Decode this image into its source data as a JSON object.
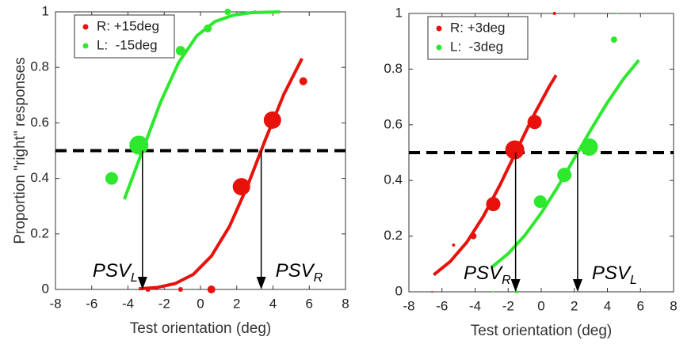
{
  "chart_data": [
    {
      "type": "scatter",
      "ylabel": "Proportion \"right\" responses",
      "xlabel": "Test orientation (deg)",
      "xlim": [
        -8,
        8
      ],
      "ylim": [
        0,
        1
      ],
      "xticks": [
        -8,
        -6,
        -4,
        -2,
        0,
        2,
        4,
        6,
        8
      ],
      "yticks": [
        0,
        0.2,
        0.4,
        0.6,
        0.8,
        1
      ],
      "legend": "upper left",
      "threshold": 0.5,
      "series": [
        {
          "name": "R: +15deg",
          "color": "#e8120c",
          "x": [
            -2.9,
            -1.1,
            0.6,
            2.26,
            3.97,
            5.67
          ],
          "values": [
            0,
            0,
            0,
            0.37,
            0.61,
            0.75
          ],
          "sizes": [
            3,
            3,
            5,
            11,
            11,
            5
          ]
        },
        {
          "name": "L:  -15deg",
          "color": "#2de82d",
          "x": [
            -4.9,
            -3.4,
            -1.1,
            0.4,
            1.5,
            3.0
          ],
          "values": [
            0.4,
            0.52,
            0.86,
            0.94,
            1,
            1
          ],
          "sizes": [
            8,
            12,
            6,
            5,
            4,
            2
          ]
        }
      ],
      "fits": [
        {
          "color": "#e8120c",
          "x": [
            -3.4,
            -2.4,
            -1.4,
            -0.4,
            0.6,
            1.6,
            2.6,
            3.6,
            4.6,
            5.6
          ],
          "values": [
            0.002,
            0.007,
            0.021,
            0.054,
            0.12,
            0.227,
            0.374,
            0.543,
            0.703,
            0.832
          ]
        },
        {
          "color": "#2de82d",
          "x": [
            -4.2,
            -3.2,
            -2.2,
            -1.2,
            -0.2,
            0.8,
            1.8,
            2.8,
            3.8,
            4.4
          ],
          "values": [
            0.325,
            0.5,
            0.675,
            0.818,
            0.914,
            0.965,
            0.988,
            0.997,
            0.999,
            1
          ]
        }
      ],
      "annotations": [
        {
          "text": "PSV",
          "subscript": "L",
          "x": -3.2
        },
        {
          "text": "PSV",
          "subscript": "R",
          "x": 3.35
        }
      ]
    },
    {
      "type": "scatter",
      "xlabel": "Test orientation (deg)",
      "xlim": [
        -8,
        8
      ],
      "ylim": [
        0,
        1
      ],
      "xticks": [
        -8,
        -6,
        -4,
        -2,
        0,
        2,
        4,
        6,
        8
      ],
      "yticks": [
        0,
        0.2,
        0.4,
        0.6,
        0.8,
        1
      ],
      "legend": "upper left",
      "threshold": 0.5,
      "series": [
        {
          "name": "R: +3deg",
          "color": "#e8120c",
          "x": [
            -6.6,
            -5.3,
            -4.1,
            -2.9,
            -1.6,
            -0.4,
            0.8
          ],
          "values": [
            0,
            0.168,
            0.2,
            0.315,
            0.51,
            0.61,
            1
          ],
          "sizes": [
            1,
            2,
            4,
            9,
            12,
            9,
            2
          ]
        },
        {
          "name": "L:  -3deg",
          "color": "#2de82d",
          "x": [
            -2.9,
            -1.5,
            -0.06,
            1.4,
            2.9,
            4.4,
            4.6
          ],
          "values": [
            0,
            0,
            0.324,
            0.42,
            0.52,
            0.906,
            1
          ],
          "sizes": [
            1,
            2,
            8,
            9,
            11,
            4,
            1
          ]
        }
      ],
      "fits": [
        {
          "color": "#e8120c",
          "x": [
            -6.5,
            -5.5,
            -4.5,
            -3.5,
            -2.5,
            -1.5,
            -0.5,
            0.5,
            0.9
          ],
          "values": [
            0.061,
            0.109,
            0.178,
            0.271,
            0.383,
            0.506,
            0.629,
            0.739,
            0.778
          ]
        },
        {
          "color": "#2de82d",
          "x": [
            -3,
            -2,
            -1,
            0,
            1,
            2,
            3,
            4,
            5,
            5.9
          ],
          "values": [
            0.088,
            0.137,
            0.202,
            0.283,
            0.377,
            0.479,
            0.582,
            0.68,
            0.767,
            0.832
          ]
        }
      ],
      "annotations": [
        {
          "text": "PSV",
          "subscript": "R",
          "x": -1.55
        },
        {
          "text": "PSV",
          "subscript": "L",
          "x": 2.2
        }
      ]
    }
  ]
}
